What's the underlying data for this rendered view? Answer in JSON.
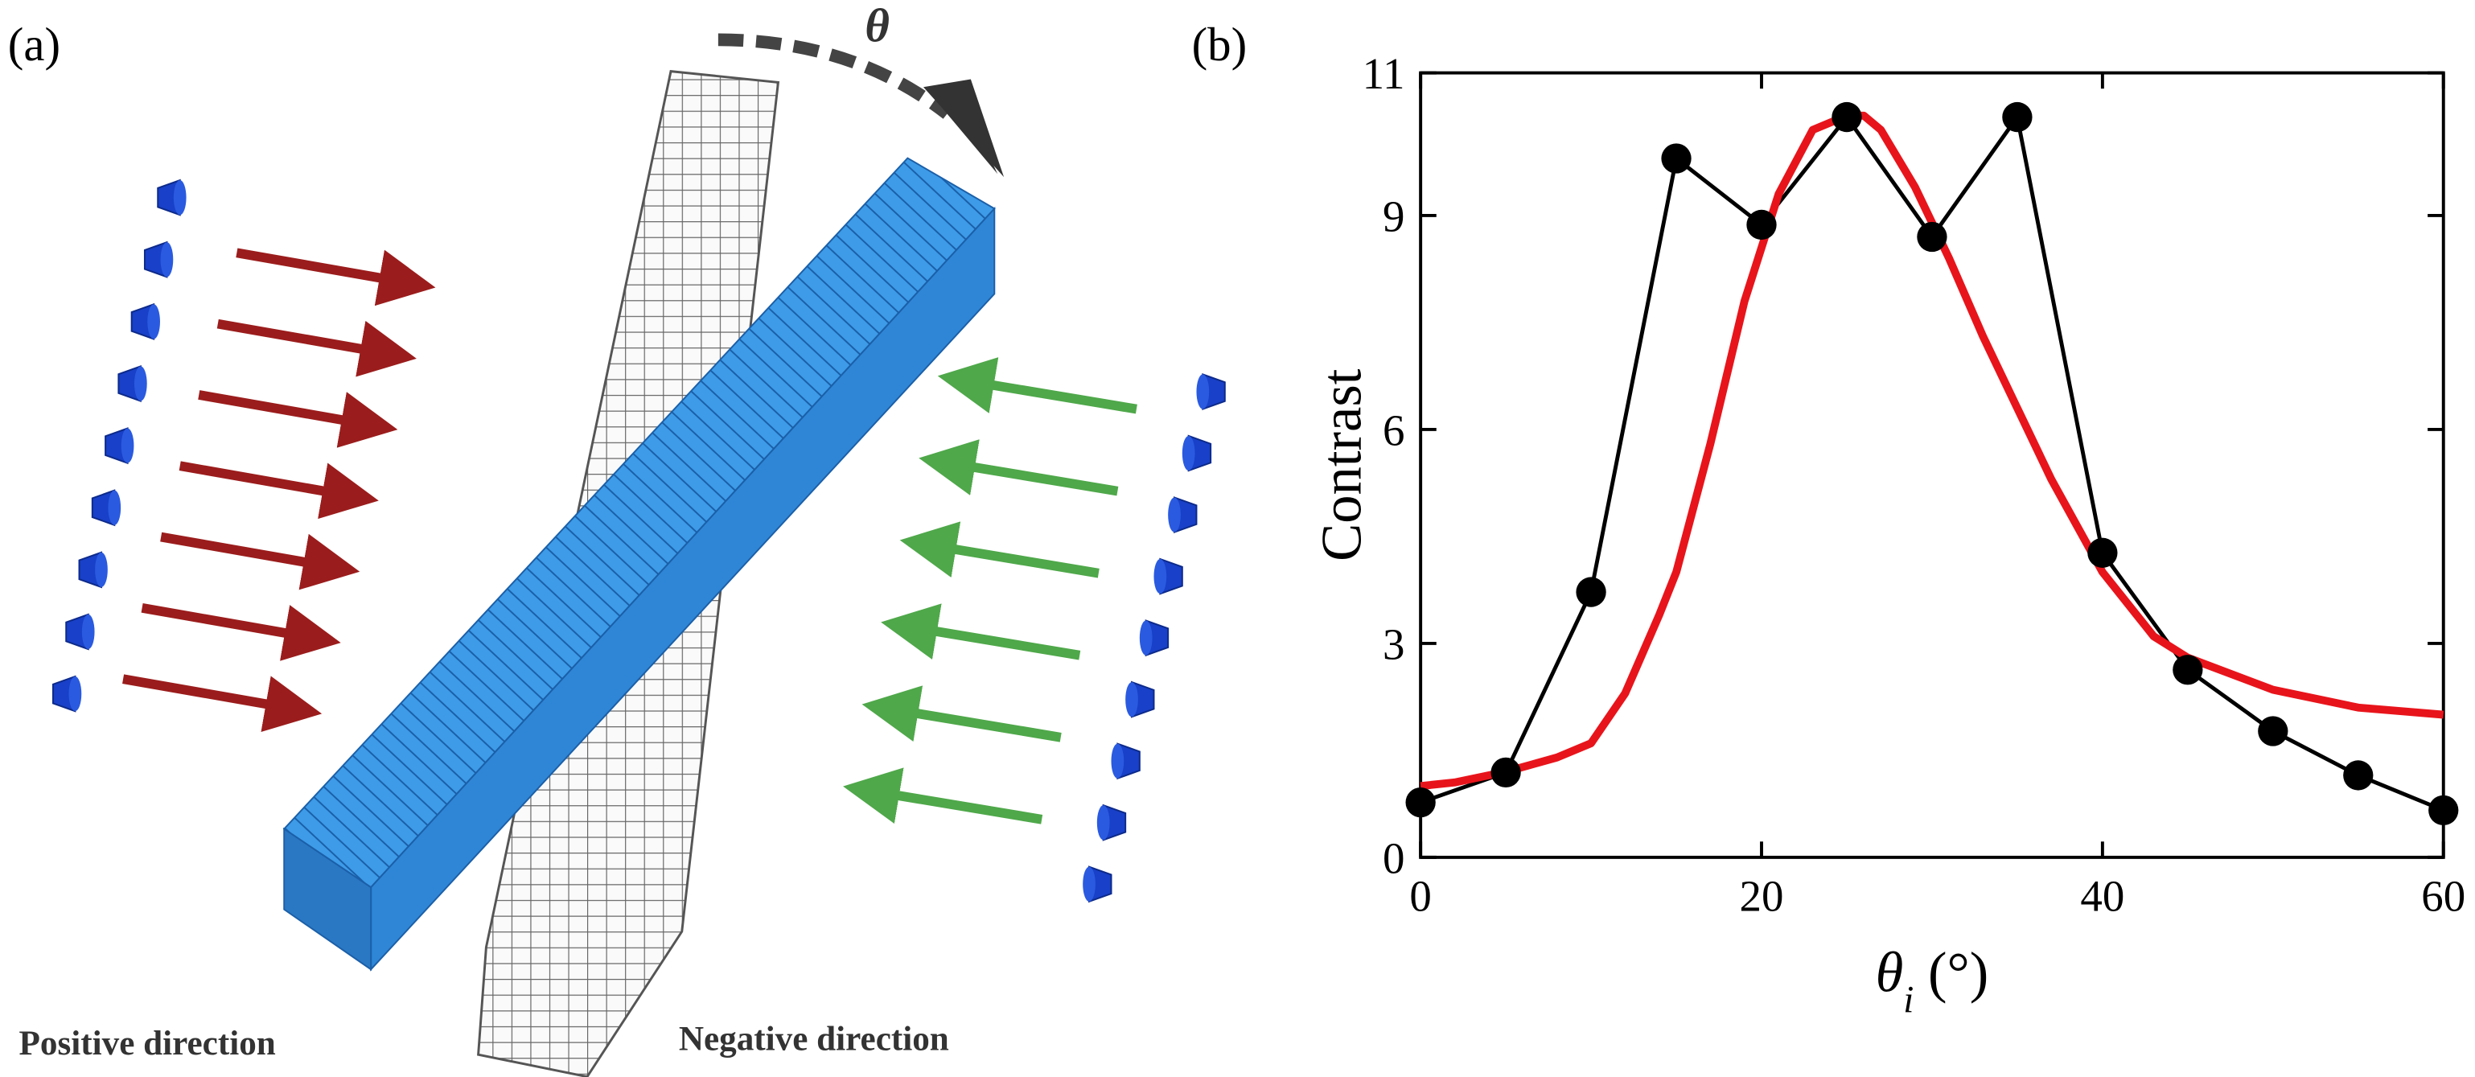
{
  "panel_labels": [
    "(a)",
    "(b)"
  ],
  "diagram": {
    "angle_label": "θ",
    "left_label": "Positive direction",
    "right_label": "Negative direction"
  },
  "chart_data": {
    "type": "line",
    "y_label": "Contrast",
    "x_label": [
      "θ",
      "i",
      " (°)"
    ],
    "xlim": [
      0,
      60
    ],
    "xticks": [
      0,
      20,
      40,
      60
    ],
    "ylim": [
      0,
      11
    ],
    "yticks": [
      0,
      3,
      6,
      9,
      11
    ],
    "series": [
      {
        "color": "#000000",
        "markers": true,
        "x": [
          0,
          5,
          10,
          15,
          20,
          25,
          30,
          35,
          40,
          45,
          50,
          55,
          60
        ],
        "values": [
          0.77,
          1.19,
          3.72,
          9.8,
          8.87,
          10.38,
          8.7,
          10.38,
          4.27,
          2.63,
          1.77,
          1.15,
          0.66
        ]
      },
      {
        "color": "#e8141b",
        "markers": false,
        "x": [
          0,
          2,
          5,
          8,
          10,
          12,
          14,
          15,
          17,
          19,
          21,
          23,
          25,
          26,
          27,
          29,
          31,
          33,
          35,
          37,
          40,
          43,
          45,
          50,
          55,
          60
        ],
        "values": [
          1.0,
          1.05,
          1.2,
          1.4,
          1.6,
          2.3,
          3.4,
          4.0,
          5.8,
          7.8,
          9.3,
          10.2,
          10.4,
          10.4,
          10.2,
          9.4,
          8.4,
          7.3,
          6.3,
          5.3,
          4.0,
          3.1,
          2.8,
          2.35,
          2.1,
          2.0
        ]
      }
    ]
  }
}
